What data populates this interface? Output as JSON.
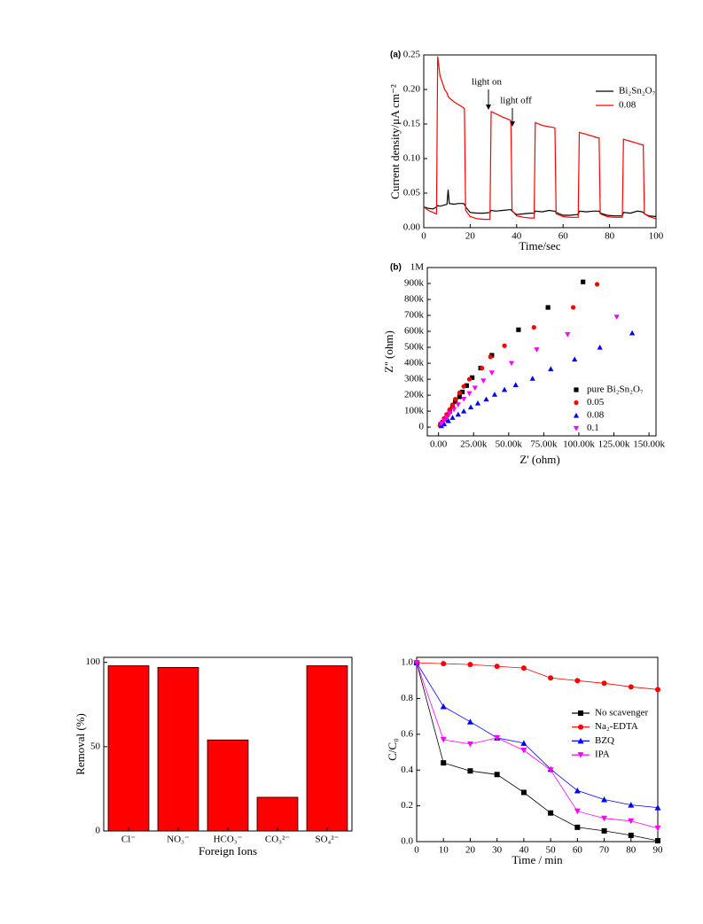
{
  "chart_data": [
    {
      "type": "line",
      "label": "(a)",
      "xlabel": "Time/sec",
      "ylabel": "Current density/μA cm⁻²",
      "x": [
        0,
        2,
        4,
        5.5,
        6,
        7,
        9,
        10,
        10.5,
        11,
        13,
        15,
        17,
        17.5,
        18,
        20,
        23,
        26,
        28.5,
        29,
        31,
        34,
        37,
        37.5,
        38,
        40,
        43,
        46,
        47.5,
        48,
        51,
        54,
        56,
        56.5,
        57,
        60,
        63,
        66,
        66.5,
        67,
        70,
        73,
        75,
        75.5,
        76,
        79,
        82,
        85,
        85.5,
        86,
        89,
        92,
        94,
        94.5,
        95,
        97,
        100
      ],
      "series": [
        {
          "name": "Bi₂Sn₂O₇",
          "color": "#000000",
          "values": [
            0.03,
            0.028,
            0.027,
            0.03,
            0.032,
            0.031,
            0.033,
            0.034,
            0.055,
            0.035,
            0.034,
            0.035,
            0.035,
            0.034,
            0.03,
            0.022,
            0.021,
            0.021,
            0.022,
            0.025,
            0.024,
            0.025,
            0.026,
            0.026,
            0.024,
            0.019,
            0.02,
            0.021,
            0.021,
            0.024,
            0.023,
            0.025,
            0.024,
            0.024,
            0.022,
            0.018,
            0.018,
            0.019,
            0.019,
            0.024,
            0.023,
            0.024,
            0.024,
            0.024,
            0.021,
            0.018,
            0.017,
            0.017,
            0.017,
            0.022,
            0.021,
            0.024,
            0.023,
            0.022,
            0.02,
            0.017,
            0.016
          ]
        },
        {
          "name": "0.08",
          "color": "#ff0000",
          "values": [
            0.03,
            0.025,
            0.022,
            0.02,
            0.248,
            0.22,
            0.2,
            0.195,
            0.19,
            0.188,
            0.182,
            0.178,
            0.174,
            0.172,
            0.025,
            0.016,
            0.013,
            0.012,
            0.012,
            0.168,
            0.165,
            0.16,
            0.156,
            0.155,
            0.025,
            0.017,
            0.015,
            0.014,
            0.014,
            0.152,
            0.148,
            0.146,
            0.145,
            0.144,
            0.02,
            0.016,
            0.015,
            0.015,
            0.015,
            0.138,
            0.135,
            0.132,
            0.13,
            0.13,
            0.02,
            0.016,
            0.015,
            0.015,
            0.015,
            0.128,
            0.125,
            0.122,
            0.12,
            0.12,
            0.02,
            0.016,
            0.013
          ]
        }
      ],
      "annotations": [
        "light on",
        "light off"
      ],
      "xlim": [
        0,
        100
      ],
      "xticks": [
        0,
        20,
        40,
        60,
        80,
        100
      ],
      "ylim": [
        0,
        0.25
      ],
      "yticks": [
        {
          "value": 0,
          "label": "0.00"
        },
        0.05,
        {
          "value": 0.1,
          "label": "0.10"
        },
        0.15,
        {
          "value": 0.2,
          "label": "0.20"
        },
        0.25
      ]
    },
    {
      "type": "scatter",
      "label": "(b)",
      "xlabel": "Z' (ohm)",
      "ylabel": "Z'' (ohm)",
      "series": [
        {
          "name": "pure Bi₂Sn₂O₇",
          "color": "#000000",
          "marker": "square",
          "x": [
            103000,
            78000,
            57000,
            38000,
            30000,
            24000,
            20000,
            17000,
            15000,
            12000,
            10000,
            8000,
            6000,
            4500,
            3000,
            1500
          ],
          "values": [
            910000,
            750000,
            610000,
            450000,
            370000,
            310000,
            260000,
            220000,
            190000,
            160000,
            130000,
            100000,
            75000,
            50000,
            30000,
            15000
          ]
        },
        {
          "name": "0.05",
          "color": "#ff0000",
          "marker": "circle",
          "x": [
            113000,
            96000,
            68000,
            47000,
            37000,
            31000,
            22000,
            18000,
            15000,
            12000,
            10000,
            8000,
            6000,
            4000,
            2500,
            1000
          ],
          "values": [
            895000,
            750000,
            625000,
            510000,
            440000,
            370000,
            300000,
            255000,
            215000,
            175000,
            140000,
            110000,
            80000,
            55000,
            30000,
            10000
          ]
        },
        {
          "name": "0.08",
          "color": "#0000ff",
          "marker": "triangle",
          "x": [
            138000,
            115000,
            97000,
            80000,
            67000,
            55000,
            47000,
            40000,
            34000,
            28000,
            23000,
            18000,
            14000,
            10000,
            7000,
            4000,
            2000
          ],
          "values": [
            590000,
            500000,
            425000,
            365000,
            305000,
            265000,
            235000,
            205000,
            175000,
            150000,
            125000,
            100000,
            80000,
            60000,
            40000,
            20000,
            8000
          ]
        },
        {
          "name": "0.1",
          "color": "#ff00ff",
          "marker": "down-triangle",
          "x": [
            127000,
            92000,
            70000,
            52000,
            38000,
            32000,
            26000,
            22000,
            18000,
            14000,
            11000,
            8000,
            6000,
            4000,
            2000
          ],
          "values": [
            690000,
            580000,
            485000,
            400000,
            340000,
            290000,
            245000,
            210000,
            175000,
            140000,
            110000,
            85000,
            60000,
            40000,
            20000
          ]
        }
      ],
      "xlim": [
        -8000,
        155000
      ],
      "xticks": [
        {
          "value": 0,
          "label": "0.00"
        },
        {
          "value": 25000,
          "label": "25.00k"
        },
        {
          "value": 50000,
          "label": "50.00k"
        },
        {
          "value": 75000,
          "label": "75.00k"
        },
        {
          "value": 100000,
          "label": "100.00k"
        },
        {
          "value": 125000,
          "label": "125.00k"
        },
        {
          "value": 150000,
          "label": "150.00k"
        }
      ],
      "ylim": [
        -55000,
        1000000
      ],
      "yticks": [
        0,
        {
          "value": 100000,
          "label": "100k"
        },
        {
          "value": 200000,
          "label": "200k"
        },
        {
          "value": 300000,
          "label": "300k"
        },
        {
          "value": 400000,
          "label": "400k"
        },
        {
          "value": 500000,
          "label": "500k"
        },
        {
          "value": 600000,
          "label": "600k"
        },
        {
          "value": 700000,
          "label": "700k"
        },
        {
          "value": 800000,
          "label": "800k"
        },
        {
          "value": 900000,
          "label": "900k"
        },
        {
          "value": 1000000,
          "label": "1M"
        }
      ]
    },
    {
      "type": "bar",
      "xlabel": "Foreign Ions",
      "ylabel": "Removal (%)",
      "categories": [
        "Cl⁻",
        "NO₃⁻",
        "HCO₃⁻",
        "CO₃²⁻",
        "SO₄²⁻"
      ],
      "values": [
        98,
        97,
        54,
        20,
        98
      ],
      "color": "#ff0000",
      "ylim": [
        0,
        103
      ],
      "yticks": [
        0,
        50,
        100
      ]
    },
    {
      "type": "line",
      "xlabel": "Time / min",
      "ylabel": "C/C₀",
      "x": [
        0,
        10,
        20,
        30,
        40,
        50,
        60,
        70,
        80,
        90
      ],
      "series": [
        {
          "name": "No scavenger",
          "color": "#000000",
          "marker": "square",
          "values": [
            1.0,
            0.44,
            0.395,
            0.375,
            0.275,
            0.16,
            0.08,
            0.06,
            0.035,
            0.005
          ]
        },
        {
          "name": "Na₂-EDTA",
          "color": "#ff0000",
          "marker": "circle",
          "values": [
            1.0,
            0.995,
            0.99,
            0.98,
            0.97,
            0.915,
            0.9,
            0.885,
            0.865,
            0.85
          ]
        },
        {
          "name": "BZQ",
          "color": "#0000ff",
          "marker": "triangle",
          "values": [
            1.0,
            0.755,
            0.67,
            0.58,
            0.55,
            0.405,
            0.285,
            0.235,
            0.205,
            0.19
          ]
        },
        {
          "name": "IPA",
          "color": "#ff00ff",
          "marker": "down-triangle",
          "values": [
            1.0,
            0.57,
            0.545,
            0.58,
            0.51,
            0.4,
            0.17,
            0.13,
            0.115,
            0.075
          ]
        }
      ],
      "xlim": [
        0,
        90
      ],
      "xticks": [
        0,
        10,
        20,
        30,
        40,
        50,
        60,
        70,
        80,
        90
      ],
      "ylim": [
        0,
        1.03
      ],
      "yticks": [
        {
          "value": 0,
          "label": "0.0"
        },
        0.2,
        0.4,
        0.6,
        0.8,
        {
          "value": 1,
          "label": "1.0"
        }
      ]
    }
  ]
}
